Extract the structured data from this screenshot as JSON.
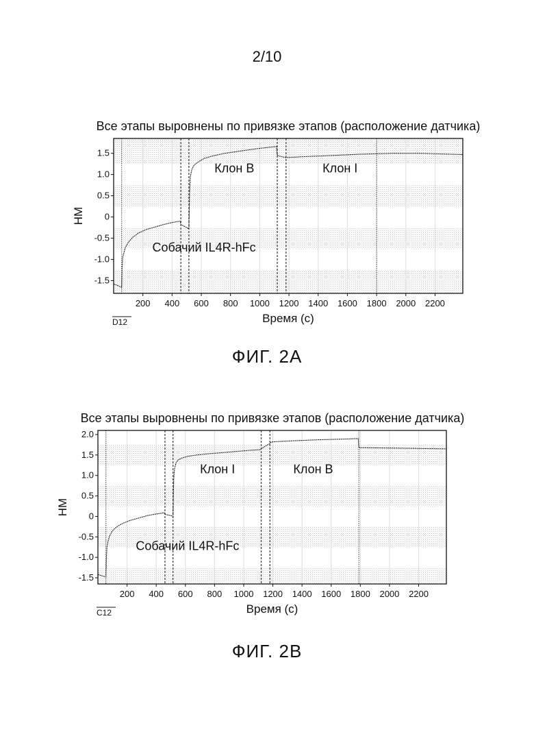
{
  "page_number": "2/10",
  "figures": [
    {
      "caption": "ФИГ. 2A",
      "sensor_label": "D12",
      "annotations": [
        {
          "text": "Собачий IL4R-hFc",
          "x": 265,
          "y": -0.72
        },
        {
          "text": "Клон B",
          "x": 690,
          "y": 1.15
        },
        {
          "text": "Клон I",
          "x": 1430,
          "y": 1.15
        }
      ]
    },
    {
      "caption": "ФИГ. 2B",
      "sensor_label": "C12",
      "annotations": [
        {
          "text": "Собачий IL4R-hFc",
          "x": 260,
          "y": -0.72
        },
        {
          "text": "Клон I",
          "x": 700,
          "y": 1.15
        },
        {
          "text": "Клон B",
          "x": 1340,
          "y": 1.15
        }
      ]
    }
  ],
  "chart_data": [
    {
      "type": "line",
      "title": "Все этапы выровнены по привязке этапов (расположение датчика)",
      "xlabel": "Время (с)",
      "ylabel": "НМ",
      "xlim": [
        0,
        2390
      ],
      "ylim": [
        -1.8,
        1.85
      ],
      "xticks": [
        200,
        400,
        600,
        800,
        1000,
        1200,
        1400,
        1600,
        1800,
        2000,
        2200
      ],
      "yticks": [
        -1.5,
        -1.0,
        -0.5,
        0,
        0.5,
        1.0,
        1.5
      ],
      "ytick_labels": [
        "-1.5",
        "-1.0",
        "-0.5",
        "0",
        "0.5",
        "1.0",
        "1.5"
      ],
      "step_markers": [
        55,
        460,
        515,
        1120,
        1180,
        1800
      ],
      "series": [
        {
          "x": [
            0,
            30,
            55,
            58,
            62,
            70,
            80,
            100,
            130,
            170,
            220,
            280,
            340,
            400,
            455,
            460,
            500,
            515,
            520,
            525,
            535,
            550,
            580,
            620,
            680,
            760,
            860,
            960,
            1060,
            1115,
            1120,
            1150,
            1180,
            1300,
            1500,
            1700,
            1900,
            2100,
            2390
          ],
          "y": [
            -1.58,
            -1.62,
            -1.66,
            -1.2,
            -0.95,
            -0.85,
            -0.72,
            -0.6,
            -0.48,
            -0.38,
            -0.3,
            -0.24,
            -0.18,
            -0.13,
            -0.1,
            -0.18,
            -0.25,
            -0.28,
            0.6,
            0.95,
            1.12,
            1.22,
            1.3,
            1.38,
            1.44,
            1.5,
            1.55,
            1.6,
            1.64,
            1.66,
            1.45,
            1.42,
            1.4,
            1.42,
            1.45,
            1.48,
            1.5,
            1.5,
            1.47
          ]
        }
      ]
    },
    {
      "type": "line",
      "title": "Все этапы выровнены по привязке этапов (расположение датчика)",
      "xlabel": "Время (с)",
      "ylabel": "НМ",
      "xlim": [
        0,
        2390
      ],
      "ylim": [
        -1.65,
        2.1
      ],
      "xticks": [
        200,
        400,
        600,
        800,
        1000,
        1200,
        1400,
        1600,
        1800,
        2000,
        2200
      ],
      "yticks": [
        -1.5,
        -1.0,
        -0.5,
        0,
        0.5,
        1.0,
        1.5,
        2.0
      ],
      "ytick_labels": [
        "-1.5",
        "-1.0",
        "-0.5",
        "0",
        "0.5",
        "1.0",
        "1.5",
        "2.0"
      ],
      "step_markers": [
        55,
        460,
        515,
        1120,
        1180,
        1790
      ],
      "series": [
        {
          "x": [
            0,
            30,
            55,
            58,
            62,
            70,
            80,
            100,
            130,
            170,
            220,
            280,
            340,
            400,
            455,
            460,
            500,
            515,
            520,
            525,
            535,
            550,
            580,
            620,
            680,
            760,
            860,
            960,
            1060,
            1115,
            1120,
            1150,
            1180,
            1190,
            1300,
            1500,
            1700,
            1785,
            1790,
            1800,
            2000,
            2200,
            2390
          ],
          "y": [
            -1.42,
            -1.45,
            -1.48,
            -1.0,
            -0.75,
            -0.6,
            -0.48,
            -0.35,
            -0.25,
            -0.17,
            -0.1,
            -0.04,
            0.02,
            0.06,
            0.09,
            0.05,
            0.02,
            0.0,
            0.9,
            1.15,
            1.3,
            1.38,
            1.43,
            1.47,
            1.5,
            1.53,
            1.56,
            1.59,
            1.62,
            1.63,
            1.65,
            1.72,
            1.78,
            1.82,
            1.84,
            1.87,
            1.89,
            1.9,
            1.68,
            1.68,
            1.67,
            1.66,
            1.65
          ]
        }
      ]
    }
  ]
}
